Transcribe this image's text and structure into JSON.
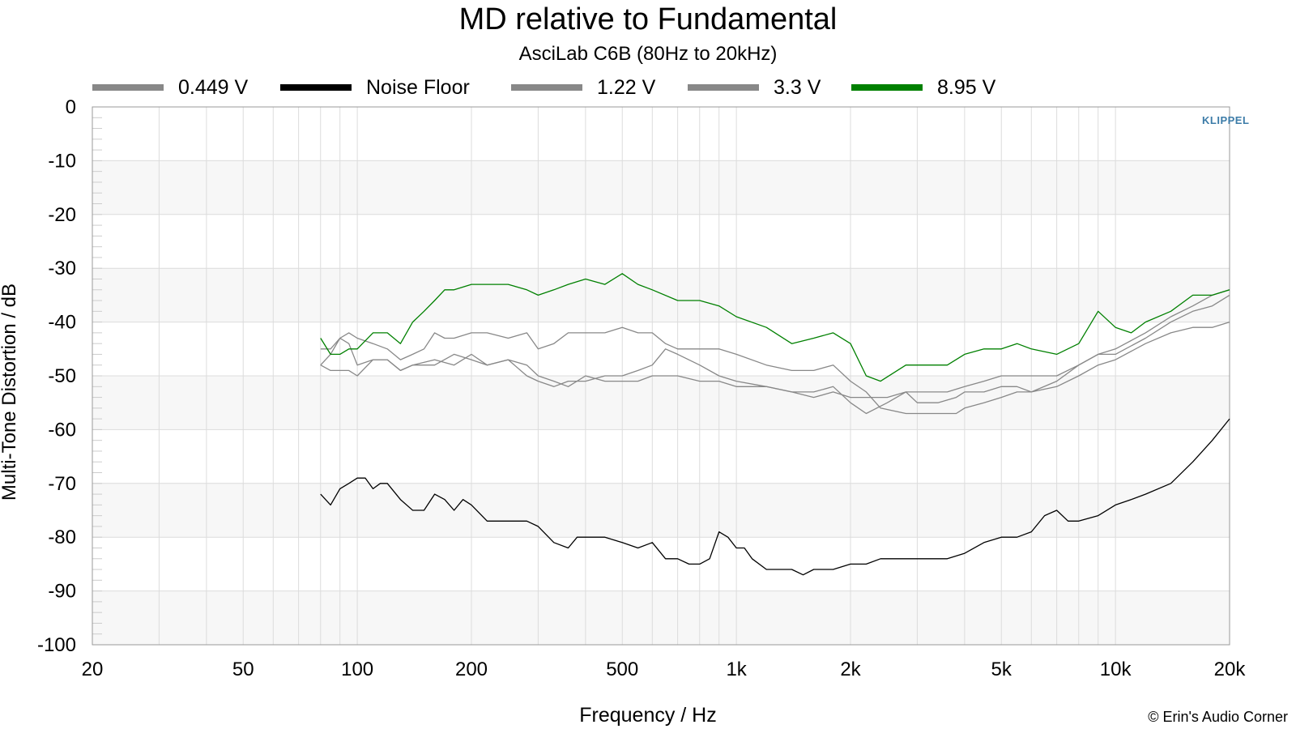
{
  "chart_data": {
    "type": "line",
    "title": "MD relative to Fundamental",
    "subtitle": "AsciLab C6B (80Hz to 20kHz)",
    "xlabel": "Frequency / Hz",
    "ylabel": "Multi-Tone Distortion / dB",
    "xscale": "log",
    "xlim": [
      20,
      20000
    ],
    "ylim": [
      -100,
      0
    ],
    "xticks": [
      {
        "value": 20,
        "label": "20"
      },
      {
        "value": 50,
        "label": "50"
      },
      {
        "value": 100,
        "label": "100"
      },
      {
        "value": 200,
        "label": "200"
      },
      {
        "value": 500,
        "label": "500"
      },
      {
        "value": 1000,
        "label": "1k"
      },
      {
        "value": 2000,
        "label": "2k"
      },
      {
        "value": 5000,
        "label": "5k"
      },
      {
        "value": 10000,
        "label": "10k"
      },
      {
        "value": 20000,
        "label": "20k"
      }
    ],
    "yticks": [
      {
        "value": 0,
        "label": "0"
      },
      {
        "value": -10,
        "label": "-10"
      },
      {
        "value": -20,
        "label": "-20"
      },
      {
        "value": -30,
        "label": "-30"
      },
      {
        "value": -40,
        "label": "-40"
      },
      {
        "value": -50,
        "label": "-50"
      },
      {
        "value": -60,
        "label": "-60"
      },
      {
        "value": -70,
        "label": "-70"
      },
      {
        "value": -80,
        "label": "-80"
      },
      {
        "value": -90,
        "label": "-90"
      },
      {
        "value": -100,
        "label": "-100"
      }
    ],
    "grid": true,
    "legend_position": "top",
    "series": [
      {
        "name": "0.449 V",
        "color": "#888888",
        "points": [
          [
            80,
            -45
          ],
          [
            85,
            -45
          ],
          [
            90,
            -43
          ],
          [
            95,
            -44
          ],
          [
            100,
            -48
          ],
          [
            110,
            -47
          ],
          [
            120,
            -47
          ],
          [
            130,
            -49
          ],
          [
            140,
            -48
          ],
          [
            150,
            -48
          ],
          [
            160,
            -48
          ],
          [
            180,
            -46
          ],
          [
            200,
            -47
          ],
          [
            220,
            -48
          ],
          [
            250,
            -47
          ],
          [
            280,
            -48
          ],
          [
            300,
            -50
          ],
          [
            330,
            -51
          ],
          [
            360,
            -52
          ],
          [
            400,
            -50
          ],
          [
            450,
            -51
          ],
          [
            500,
            -51
          ],
          [
            550,
            -51
          ],
          [
            600,
            -50
          ],
          [
            700,
            -50
          ],
          [
            800,
            -51
          ],
          [
            900,
            -51
          ],
          [
            1000,
            -52
          ],
          [
            1100,
            -52
          ],
          [
            1200,
            -52
          ],
          [
            1400,
            -53
          ],
          [
            1600,
            -54
          ],
          [
            1800,
            -53
          ],
          [
            2000,
            -54
          ],
          [
            2200,
            -54
          ],
          [
            2500,
            -54
          ],
          [
            2800,
            -53
          ],
          [
            3200,
            -53
          ],
          [
            3600,
            -53
          ],
          [
            4000,
            -52
          ],
          [
            4500,
            -51
          ],
          [
            5000,
            -50
          ],
          [
            5500,
            -50
          ],
          [
            6000,
            -50
          ],
          [
            6500,
            -50
          ],
          [
            7000,
            -50
          ],
          [
            8000,
            -48
          ],
          [
            9000,
            -46
          ],
          [
            10000,
            -45
          ],
          [
            12000,
            -42
          ],
          [
            14000,
            -39
          ],
          [
            16000,
            -37
          ],
          [
            18000,
            -35
          ],
          [
            20000,
            -34
          ]
        ]
      },
      {
        "name": "Noise Floor",
        "color": "#000000",
        "points": [
          [
            80,
            -72
          ],
          [
            85,
            -74
          ],
          [
            90,
            -71
          ],
          [
            95,
            -70
          ],
          [
            100,
            -69
          ],
          [
            105,
            -69
          ],
          [
            110,
            -71
          ],
          [
            115,
            -70
          ],
          [
            120,
            -70
          ],
          [
            130,
            -73
          ],
          [
            140,
            -75
          ],
          [
            150,
            -75
          ],
          [
            160,
            -72
          ],
          [
            170,
            -73
          ],
          [
            180,
            -75
          ],
          [
            190,
            -73
          ],
          [
            200,
            -74
          ],
          [
            220,
            -77
          ],
          [
            250,
            -77
          ],
          [
            280,
            -77
          ],
          [
            300,
            -78
          ],
          [
            330,
            -81
          ],
          [
            360,
            -82
          ],
          [
            380,
            -80
          ],
          [
            400,
            -80
          ],
          [
            450,
            -80
          ],
          [
            500,
            -81
          ],
          [
            550,
            -82
          ],
          [
            600,
            -81
          ],
          [
            650,
            -84
          ],
          [
            700,
            -84
          ],
          [
            750,
            -85
          ],
          [
            800,
            -85
          ],
          [
            850,
            -84
          ],
          [
            900,
            -79
          ],
          [
            950,
            -80
          ],
          [
            1000,
            -82
          ],
          [
            1050,
            -82
          ],
          [
            1100,
            -84
          ],
          [
            1200,
            -86
          ],
          [
            1300,
            -86
          ],
          [
            1400,
            -86
          ],
          [
            1500,
            -87
          ],
          [
            1600,
            -86
          ],
          [
            1800,
            -86
          ],
          [
            2000,
            -85
          ],
          [
            2200,
            -85
          ],
          [
            2400,
            -84
          ],
          [
            2800,
            -84
          ],
          [
            3200,
            -84
          ],
          [
            3600,
            -84
          ],
          [
            4000,
            -83
          ],
          [
            4500,
            -81
          ],
          [
            5000,
            -80
          ],
          [
            5500,
            -80
          ],
          [
            6000,
            -79
          ],
          [
            6500,
            -76
          ],
          [
            7000,
            -75
          ],
          [
            7500,
            -77
          ],
          [
            8000,
            -77
          ],
          [
            9000,
            -76
          ],
          [
            10000,
            -74
          ],
          [
            11000,
            -73
          ],
          [
            12000,
            -72
          ],
          [
            14000,
            -70
          ],
          [
            16000,
            -66
          ],
          [
            18000,
            -62
          ],
          [
            20000,
            -58
          ]
        ]
      },
      {
        "name": "1.22 V",
        "color": "#888888",
        "points": [
          [
            80,
            -48
          ],
          [
            85,
            -49
          ],
          [
            90,
            -49
          ],
          [
            95,
            -49
          ],
          [
            100,
            -50
          ],
          [
            110,
            -47
          ],
          [
            120,
            -47
          ],
          [
            130,
            -49
          ],
          [
            140,
            -48
          ],
          [
            160,
            -47
          ],
          [
            180,
            -48
          ],
          [
            200,
            -46
          ],
          [
            220,
            -48
          ],
          [
            250,
            -47
          ],
          [
            280,
            -50
          ],
          [
            300,
            -51
          ],
          [
            330,
            -52
          ],
          [
            360,
            -51
          ],
          [
            400,
            -51
          ],
          [
            450,
            -50
          ],
          [
            500,
            -50
          ],
          [
            550,
            -49
          ],
          [
            600,
            -48
          ],
          [
            650,
            -45
          ],
          [
            700,
            -46
          ],
          [
            800,
            -48
          ],
          [
            900,
            -50
          ],
          [
            1000,
            -51
          ],
          [
            1200,
            -52
          ],
          [
            1400,
            -53
          ],
          [
            1600,
            -53
          ],
          [
            1800,
            -52
          ],
          [
            2000,
            -55
          ],
          [
            2200,
            -57
          ],
          [
            2500,
            -55
          ],
          [
            2800,
            -53
          ],
          [
            3000,
            -55
          ],
          [
            3400,
            -55
          ],
          [
            3800,
            -54
          ],
          [
            4000,
            -53
          ],
          [
            4500,
            -53
          ],
          [
            5000,
            -52
          ],
          [
            5500,
            -52
          ],
          [
            6000,
            -53
          ],
          [
            7000,
            -52
          ],
          [
            8000,
            -50
          ],
          [
            9000,
            -48
          ],
          [
            10000,
            -47
          ],
          [
            12000,
            -44
          ],
          [
            14000,
            -42
          ],
          [
            16000,
            -41
          ],
          [
            18000,
            -41
          ],
          [
            20000,
            -40
          ]
        ]
      },
      {
        "name": "3.3 V",
        "color": "#888888",
        "points": [
          [
            80,
            -48
          ],
          [
            85,
            -46
          ],
          [
            90,
            -43
          ],
          [
            95,
            -42
          ],
          [
            100,
            -43
          ],
          [
            110,
            -44
          ],
          [
            120,
            -45
          ],
          [
            130,
            -47
          ],
          [
            140,
            -46
          ],
          [
            150,
            -45
          ],
          [
            160,
            -42
          ],
          [
            170,
            -43
          ],
          [
            180,
            -43
          ],
          [
            200,
            -42
          ],
          [
            220,
            -42
          ],
          [
            250,
            -43
          ],
          [
            280,
            -42
          ],
          [
            300,
            -45
          ],
          [
            330,
            -44
          ],
          [
            360,
            -42
          ],
          [
            400,
            -42
          ],
          [
            450,
            -42
          ],
          [
            500,
            -41
          ],
          [
            550,
            -42
          ],
          [
            600,
            -42
          ],
          [
            650,
            -44
          ],
          [
            700,
            -45
          ],
          [
            800,
            -45
          ],
          [
            900,
            -45
          ],
          [
            1000,
            -46
          ],
          [
            1200,
            -48
          ],
          [
            1400,
            -49
          ],
          [
            1600,
            -49
          ],
          [
            1800,
            -48
          ],
          [
            2000,
            -51
          ],
          [
            2200,
            -53
          ],
          [
            2400,
            -56
          ],
          [
            2800,
            -57
          ],
          [
            3000,
            -57
          ],
          [
            3400,
            -57
          ],
          [
            3800,
            -57
          ],
          [
            4000,
            -56
          ],
          [
            4500,
            -55
          ],
          [
            5000,
            -54
          ],
          [
            5500,
            -53
          ],
          [
            6000,
            -53
          ],
          [
            7000,
            -51
          ],
          [
            8000,
            -48
          ],
          [
            9000,
            -46
          ],
          [
            10000,
            -46
          ],
          [
            12000,
            -43
          ],
          [
            14000,
            -40
          ],
          [
            16000,
            -38
          ],
          [
            18000,
            -37
          ],
          [
            20000,
            -35
          ]
        ]
      },
      {
        "name": "8.95 V",
        "color": "#008000",
        "points": [
          [
            80,
            -43
          ],
          [
            85,
            -46
          ],
          [
            90,
            -46
          ],
          [
            95,
            -45
          ],
          [
            100,
            -45
          ],
          [
            110,
            -42
          ],
          [
            120,
            -42
          ],
          [
            130,
            -44
          ],
          [
            140,
            -40
          ],
          [
            150,
            -38
          ],
          [
            160,
            -36
          ],
          [
            170,
            -34
          ],
          [
            180,
            -34
          ],
          [
            200,
            -33
          ],
          [
            220,
            -33
          ],
          [
            250,
            -33
          ],
          [
            280,
            -34
          ],
          [
            300,
            -35
          ],
          [
            330,
            -34
          ],
          [
            360,
            -33
          ],
          [
            400,
            -32
          ],
          [
            450,
            -33
          ],
          [
            500,
            -31
          ],
          [
            550,
            -33
          ],
          [
            600,
            -34
          ],
          [
            700,
            -36
          ],
          [
            800,
            -36
          ],
          [
            900,
            -37
          ],
          [
            1000,
            -39
          ],
          [
            1200,
            -41
          ],
          [
            1400,
            -44
          ],
          [
            1600,
            -43
          ],
          [
            1800,
            -42
          ],
          [
            2000,
            -44
          ],
          [
            2200,
            -50
          ],
          [
            2400,
            -51
          ],
          [
            2800,
            -48
          ],
          [
            3200,
            -48
          ],
          [
            3600,
            -48
          ],
          [
            4000,
            -46
          ],
          [
            4500,
            -45
          ],
          [
            5000,
            -45
          ],
          [
            5500,
            -44
          ],
          [
            6000,
            -45
          ],
          [
            7000,
            -46
          ],
          [
            8000,
            -44
          ],
          [
            9000,
            -38
          ],
          [
            10000,
            -41
          ],
          [
            11000,
            -42
          ],
          [
            12000,
            -40
          ],
          [
            14000,
            -38
          ],
          [
            16000,
            -35
          ],
          [
            18000,
            -35
          ],
          [
            20000,
            -34
          ]
        ]
      }
    ]
  },
  "watermark": "KLIPPEL",
  "credit": "© Erin's Audio Corner"
}
